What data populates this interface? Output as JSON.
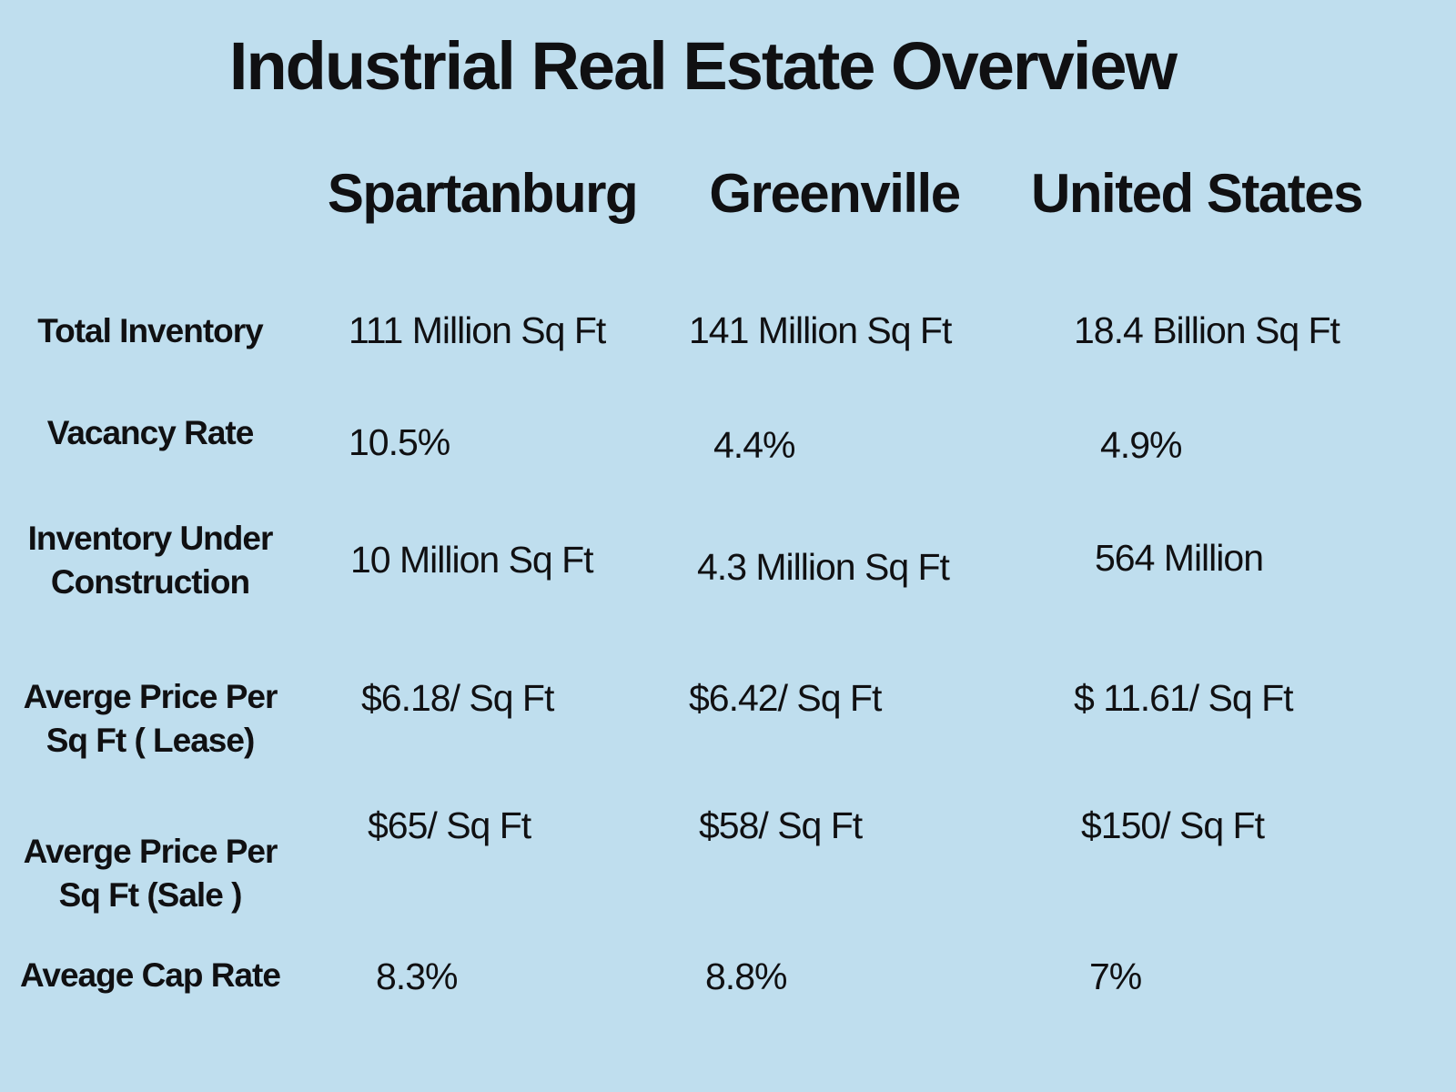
{
  "title": "Industrial Real Estate Overview",
  "chart_data": {
    "type": "table",
    "title": "Industrial Real Estate Overview",
    "columns": [
      "Spartanburg",
      "Greenville",
      "United States"
    ],
    "row_header": "",
    "rows": [
      {
        "label": "Total Inventory",
        "values": [
          "111 Million Sq Ft",
          "141 Million Sq Ft",
          "18.4 Billion Sq Ft"
        ]
      },
      {
        "label": "Vacancy Rate",
        "values": [
          "10.5%",
          "4.4%",
          "4.9%"
        ]
      },
      {
        "label": "Inventory Under\nConstruction",
        "values": [
          "10 Million Sq Ft",
          "4.3 Million Sq Ft",
          "564 Million"
        ]
      },
      {
        "label": "Averge Price Per\nSq Ft ( Lease)",
        "values": [
          "$6.18/ Sq Ft",
          "$6.42/ Sq Ft",
          "$ 11.61/ Sq Ft"
        ]
      },
      {
        "label": "Averge Price Per\nSq Ft  (Sale )",
        "values": [
          "$65/ Sq Ft",
          "$58/ Sq Ft",
          "$150/ Sq Ft"
        ]
      },
      {
        "label": "Aveage Cap Rate",
        "values": [
          "8.3%",
          "8.8%",
          "7%"
        ]
      }
    ]
  },
  "colors": {
    "background": "#bfdeee",
    "text": "#101012"
  }
}
